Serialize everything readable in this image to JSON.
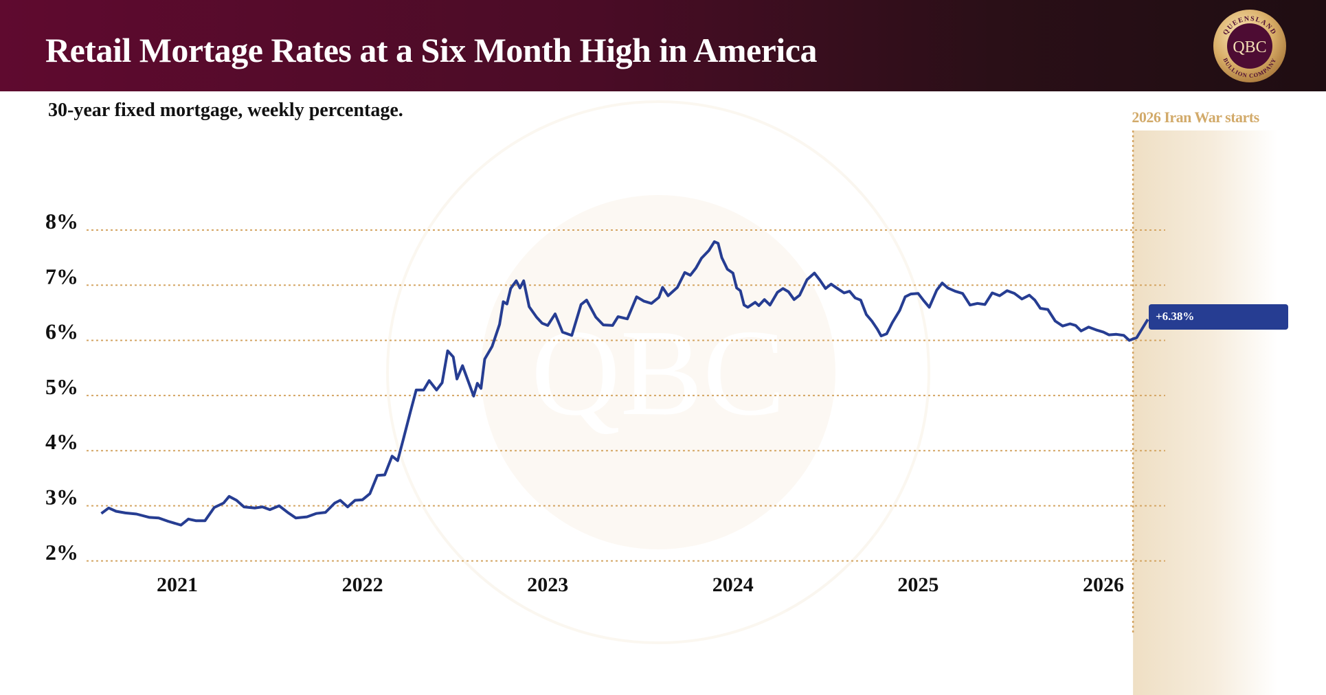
{
  "header": {
    "title": "Retail Mortage Rates at a Six Month High in America"
  },
  "logo": {
    "top_text": "QUEENSLAND",
    "center_text": "QBC",
    "bottom_text": "BULLION COMPANY"
  },
  "colors": {
    "line": "#263d92",
    "grid": "#d4a563",
    "header_left": "#5f0a2f",
    "header_right": "#1f0d12",
    "annotation": "#d2aa6a"
  },
  "chart_data": {
    "type": "line",
    "title": "Retail Mortage Rates at a Six Month High in America",
    "subtitle": "30-year fixed mortgage, weekly percentage.",
    "xlabel": "",
    "ylabel": "",
    "ylim": [
      2,
      8
    ],
    "xlim": [
      2020.5,
      2026.3
    ],
    "grid": true,
    "y_ticks": [
      {
        "v": 8,
        "label": "8%"
      },
      {
        "v": 7,
        "label": "7%"
      },
      {
        "v": 6,
        "label": "6%"
      },
      {
        "v": 5,
        "label": "5%"
      },
      {
        "v": 4,
        "label": "4%"
      },
      {
        "v": 3,
        "label": "3%"
      },
      {
        "v": 2,
        "label": "2%"
      }
    ],
    "x_ticks": [
      {
        "v": 2021,
        "label": "2021"
      },
      {
        "v": 2022,
        "label": "2022"
      },
      {
        "v": 2023,
        "label": "2023"
      },
      {
        "v": 2024,
        "label": "2024"
      },
      {
        "v": 2025,
        "label": "2025"
      },
      {
        "v": 2026,
        "label": "2026"
      }
    ],
    "series": [
      {
        "name": "30-year fixed mortgage rate",
        "points": [
          [
            2020.59,
            2.86
          ],
          [
            2020.63,
            2.96
          ],
          [
            2020.67,
            2.9
          ],
          [
            2020.72,
            2.87
          ],
          [
            2020.78,
            2.85
          ],
          [
            2020.85,
            2.79
          ],
          [
            2020.9,
            2.78
          ],
          [
            2020.95,
            2.72
          ],
          [
            2021.0,
            2.67
          ],
          [
            2021.02,
            2.65
          ],
          [
            2021.06,
            2.76
          ],
          [
            2021.1,
            2.73
          ],
          [
            2021.15,
            2.73
          ],
          [
            2021.2,
            2.97
          ],
          [
            2021.25,
            3.05
          ],
          [
            2021.28,
            3.17
          ],
          [
            2021.32,
            3.1
          ],
          [
            2021.36,
            2.98
          ],
          [
            2021.42,
            2.96
          ],
          [
            2021.46,
            2.98
          ],
          [
            2021.5,
            2.93
          ],
          [
            2021.55,
            3.0
          ],
          [
            2021.6,
            2.87
          ],
          [
            2021.64,
            2.78
          ],
          [
            2021.7,
            2.8
          ],
          [
            2021.75,
            2.86
          ],
          [
            2021.8,
            2.88
          ],
          [
            2021.85,
            3.05
          ],
          [
            2021.88,
            3.1
          ],
          [
            2021.92,
            2.98
          ],
          [
            2021.96,
            3.1
          ],
          [
            2022.0,
            3.11
          ],
          [
            2022.04,
            3.22
          ],
          [
            2022.08,
            3.55
          ],
          [
            2022.12,
            3.56
          ],
          [
            2022.16,
            3.9
          ],
          [
            2022.19,
            3.82
          ],
          [
            2022.22,
            4.2
          ],
          [
            2022.26,
            4.72
          ],
          [
            2022.29,
            5.1
          ],
          [
            2022.33,
            5.1
          ],
          [
            2022.36,
            5.27
          ],
          [
            2022.4,
            5.1
          ],
          [
            2022.43,
            5.23
          ],
          [
            2022.46,
            5.81
          ],
          [
            2022.49,
            5.7
          ],
          [
            2022.51,
            5.3
          ],
          [
            2022.54,
            5.54
          ],
          [
            2022.6,
            4.99
          ],
          [
            2022.62,
            5.22
          ],
          [
            2022.64,
            5.13
          ],
          [
            2022.66,
            5.66
          ],
          [
            2022.7,
            5.89
          ],
          [
            2022.74,
            6.29
          ],
          [
            2022.76,
            6.7
          ],
          [
            2022.78,
            6.66
          ],
          [
            2022.8,
            6.94
          ],
          [
            2022.83,
            7.08
          ],
          [
            2022.85,
            6.95
          ],
          [
            2022.87,
            7.08
          ],
          [
            2022.9,
            6.61
          ],
          [
            2022.94,
            6.42
          ],
          [
            2022.97,
            6.31
          ],
          [
            2023.0,
            6.27
          ],
          [
            2023.04,
            6.48
          ],
          [
            2023.08,
            6.15
          ],
          [
            2023.13,
            6.09
          ],
          [
            2023.18,
            6.65
          ],
          [
            2023.21,
            6.73
          ],
          [
            2023.26,
            6.42
          ],
          [
            2023.3,
            6.28
          ],
          [
            2023.35,
            6.27
          ],
          [
            2023.38,
            6.43
          ],
          [
            2023.43,
            6.39
          ],
          [
            2023.48,
            6.79
          ],
          [
            2023.52,
            6.71
          ],
          [
            2023.56,
            6.67
          ],
          [
            2023.6,
            6.78
          ],
          [
            2023.62,
            6.96
          ],
          [
            2023.65,
            6.81
          ],
          [
            2023.7,
            6.96
          ],
          [
            2023.74,
            7.23
          ],
          [
            2023.77,
            7.18
          ],
          [
            2023.8,
            7.31
          ],
          [
            2023.83,
            7.49
          ],
          [
            2023.87,
            7.63
          ],
          [
            2023.9,
            7.79
          ],
          [
            2023.92,
            7.76
          ],
          [
            2023.94,
            7.5
          ],
          [
            2023.97,
            7.29
          ],
          [
            2024.0,
            7.22
          ],
          [
            2024.02,
            6.95
          ],
          [
            2024.04,
            6.9
          ],
          [
            2024.06,
            6.64
          ],
          [
            2024.08,
            6.6
          ],
          [
            2024.12,
            6.69
          ],
          [
            2024.14,
            6.63
          ],
          [
            2024.17,
            6.74
          ],
          [
            2024.2,
            6.64
          ],
          [
            2024.24,
            6.87
          ],
          [
            2024.27,
            6.94
          ],
          [
            2024.3,
            6.88
          ],
          [
            2024.33,
            6.74
          ],
          [
            2024.36,
            6.82
          ],
          [
            2024.4,
            7.1
          ],
          [
            2024.44,
            7.22
          ],
          [
            2024.47,
            7.09
          ],
          [
            2024.5,
            6.94
          ],
          [
            2024.53,
            7.02
          ],
          [
            2024.56,
            6.95
          ],
          [
            2024.6,
            6.86
          ],
          [
            2024.63,
            6.89
          ],
          [
            2024.66,
            6.77
          ],
          [
            2024.69,
            6.73
          ],
          [
            2024.72,
            6.47
          ],
          [
            2024.75,
            6.35
          ],
          [
            2024.78,
            6.2
          ],
          [
            2024.8,
            6.08
          ],
          [
            2024.83,
            6.12
          ],
          [
            2024.86,
            6.32
          ],
          [
            2024.9,
            6.54
          ],
          [
            2024.93,
            6.79
          ],
          [
            2024.96,
            6.84
          ],
          [
            2025.0,
            6.85
          ],
          [
            2025.03,
            6.72
          ],
          [
            2025.06,
            6.6
          ],
          [
            2025.1,
            6.91
          ],
          [
            2025.13,
            7.04
          ],
          [
            2025.16,
            6.95
          ],
          [
            2025.2,
            6.89
          ],
          [
            2025.24,
            6.85
          ],
          [
            2025.28,
            6.64
          ],
          [
            2025.32,
            6.67
          ],
          [
            2025.36,
            6.65
          ],
          [
            2025.4,
            6.86
          ],
          [
            2025.44,
            6.81
          ],
          [
            2025.48,
            6.9
          ],
          [
            2025.52,
            6.85
          ],
          [
            2025.56,
            6.75
          ],
          [
            2025.6,
            6.82
          ],
          [
            2025.63,
            6.73
          ],
          [
            2025.66,
            6.58
          ],
          [
            2025.7,
            6.56
          ],
          [
            2025.74,
            6.35
          ],
          [
            2025.78,
            6.26
          ],
          [
            2025.82,
            6.3
          ],
          [
            2025.85,
            6.27
          ],
          [
            2025.88,
            6.17
          ],
          [
            2025.92,
            6.24
          ],
          [
            2025.96,
            6.19
          ],
          [
            2026.0,
            6.15
          ],
          [
            2026.03,
            6.1
          ],
          [
            2026.07,
            6.11
          ],
          [
            2026.11,
            6.09
          ],
          [
            2026.14,
            6.0
          ],
          [
            2026.18,
            6.05
          ],
          [
            2026.24,
            6.38
          ]
        ]
      }
    ],
    "annotations": [
      {
        "label": "2026 Iran War starts",
        "x": 2026.16,
        "type": "vertical-band"
      },
      {
        "label": "+6.38%",
        "x": 2026.24,
        "y": 6.38,
        "type": "callout"
      }
    ]
  }
}
